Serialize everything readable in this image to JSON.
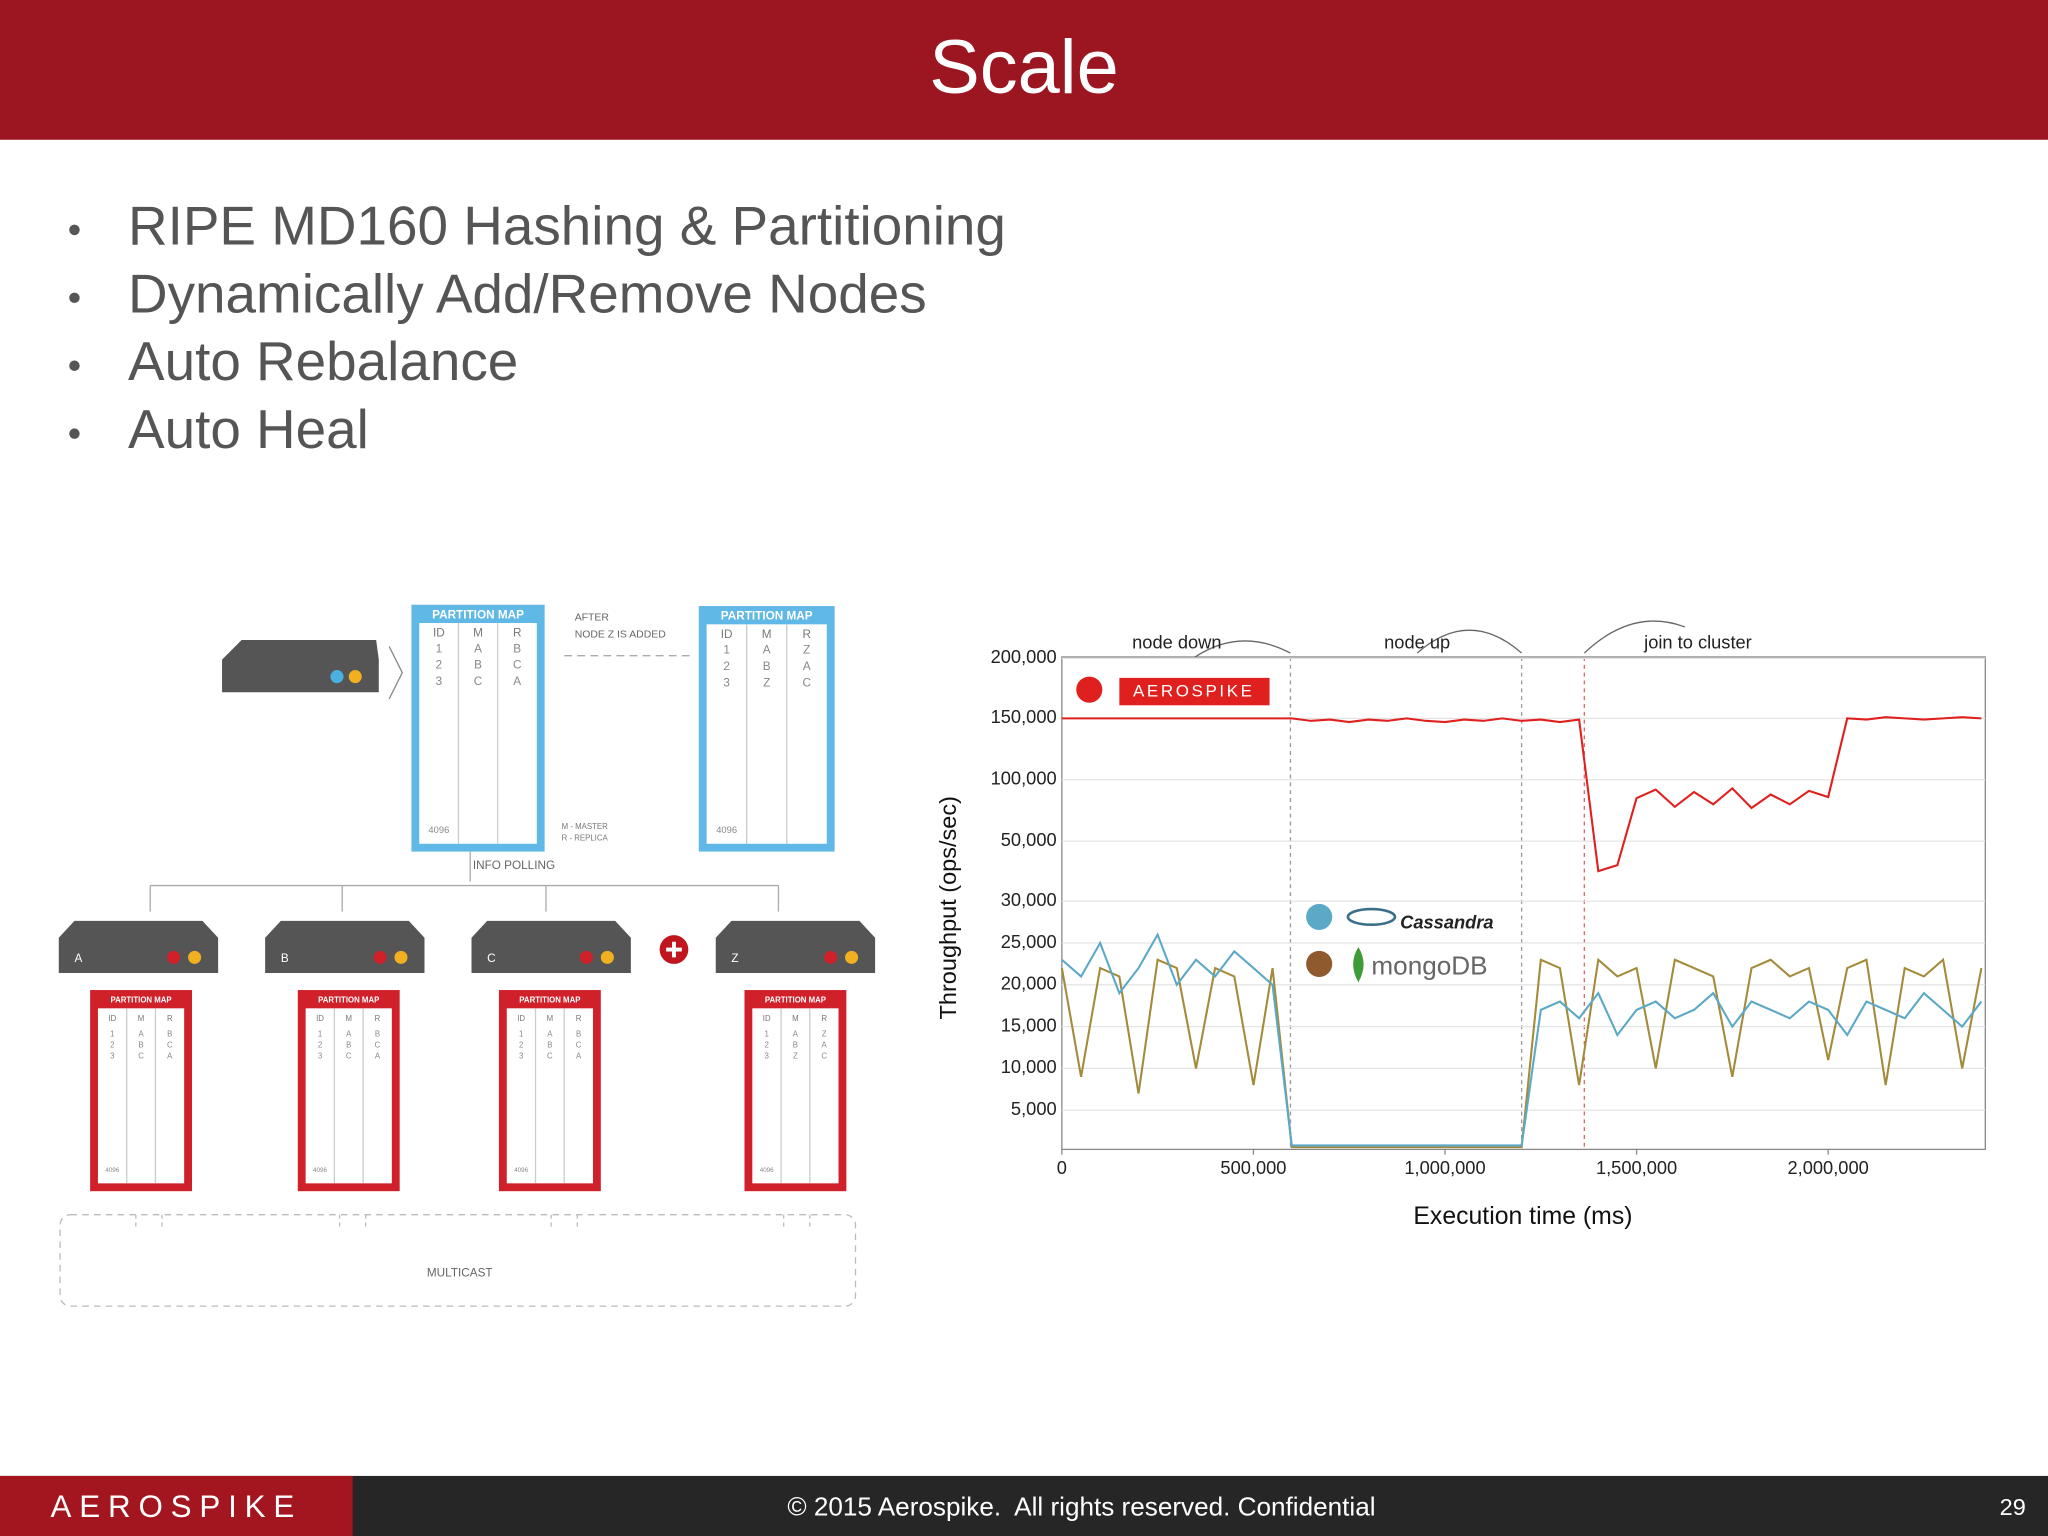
{
  "header": {
    "title": "Scale"
  },
  "bullets": [
    "RIPE MD160 Hashing & Partitioning",
    "Dynamically Add/Remove Nodes",
    "Auto Rebalance",
    "Auto Heal"
  ],
  "diagram": {
    "map_title": "PARTITION MAP",
    "headers": [
      "ID",
      "M",
      "R"
    ],
    "before_rows": [
      [
        "1",
        "A",
        "B"
      ],
      [
        "2",
        "B",
        "C"
      ],
      [
        "3",
        "C",
        "A"
      ]
    ],
    "after_rows": [
      [
        "1",
        "A",
        "Z"
      ],
      [
        "2",
        "B",
        "A"
      ],
      [
        "3",
        "Z",
        "C"
      ]
    ],
    "last_id": "4096",
    "after_note": [
      "AFTER",
      "NODE Z IS ADDED"
    ],
    "legend_notes": [
      "M - MASTER",
      "R - REPLICA"
    ],
    "info_polling": "INFO POLLING",
    "nodes": [
      "A",
      "B",
      "C",
      "Z"
    ],
    "multicast": "MULTICAST"
  },
  "chart_data": {
    "type": "line",
    "xlabel": "Execution time (ms)",
    "ylabel": "Throughput (ops/sec)",
    "annotations": [
      "node down",
      "node up",
      "join to cluster"
    ],
    "x": [
      0,
      50000,
      100000,
      150000,
      200000,
      250000,
      300000,
      350000,
      400000,
      450000,
      500000,
      550000,
      600000,
      650000,
      700000,
      750000,
      800000,
      850000,
      900000,
      950000,
      1000000,
      1050000,
      1100000,
      1150000,
      1200000,
      1250000,
      1300000,
      1350000,
      1400000,
      1450000,
      1500000,
      1550000,
      1600000,
      1650000,
      1700000,
      1750000,
      1800000,
      1850000,
      1900000,
      1950000,
      2000000,
      2050000,
      2100000,
      2150000,
      2200000,
      2250000,
      2300000,
      2350000,
      2400000
    ],
    "series": [
      {
        "name": "mongoDB",
        "color": "#a38b3b",
        "values": [
          22000,
          9000,
          22000,
          21000,
          7000,
          23000,
          22000,
          10000,
          22000,
          21000,
          8000,
          22000,
          300,
          300,
          300,
          300,
          300,
          300,
          300,
          300,
          300,
          300,
          300,
          300,
          300,
          23000,
          22000,
          8000,
          23000,
          21000,
          22000,
          10000,
          23000,
          22000,
          21000,
          9000,
          22000,
          23000,
          21000,
          22000,
          11000,
          22000,
          23000,
          8000,
          22000,
          21000,
          23000,
          10000,
          22000
        ]
      },
      {
        "name": "Cassandra",
        "color": "#5ba9c6",
        "values": [
          23000,
          21000,
          25000,
          19000,
          22000,
          26000,
          20000,
          23000,
          21000,
          24000,
          22000,
          20000,
          500,
          500,
          500,
          500,
          500,
          500,
          500,
          500,
          500,
          500,
          500,
          500,
          500,
          17000,
          18000,
          16000,
          19000,
          14000,
          17000,
          18000,
          16000,
          17000,
          19000,
          15000,
          18000,
          17000,
          16000,
          18000,
          17000,
          14000,
          18000,
          17000,
          16000,
          19000,
          17000,
          15000,
          18000
        ]
      },
      {
        "name": "AEROSPIKE",
        "color": "#e0201e",
        "values": [
          150000,
          150000,
          150000,
          150000,
          150000,
          150000,
          150000,
          150000,
          150000,
          150000,
          150000,
          150000,
          150000,
          148000,
          149000,
          147000,
          149000,
          148000,
          150000,
          148000,
          147000,
          149000,
          148000,
          150000,
          148000,
          149000,
          147000,
          149000,
          40000,
          42000,
          85000,
          92000,
          78000,
          90000,
          80000,
          93000,
          77000,
          88000,
          80000,
          91000,
          86000,
          150000,
          149000,
          151000,
          150000,
          149000,
          150000,
          151000,
          150000
        ]
      }
    ],
    "xlim": [
      0,
      2400000
    ],
    "ylim": [
      0,
      200000
    ],
    "xticks": [
      0,
      {
        "value": 500000,
        "label": "500,000"
      },
      {
        "value": 1000000,
        "label": "1,000,000"
      },
      {
        "value": 1500000,
        "label": "1,500,000"
      },
      {
        "value": 2000000,
        "label": "2,000,000"
      }
    ],
    "yticks": [
      {
        "value": 5000,
        "label": "5,000"
      },
      {
        "value": 10000,
        "label": "10,000"
      },
      {
        "value": 15000,
        "label": "15,000"
      },
      {
        "value": 20000,
        "label": "20,000"
      },
      {
        "value": 25000,
        "label": "25,000"
      },
      {
        "value": 30000,
        "label": "30,000"
      },
      {
        "value": 50000,
        "label": "50,000"
      },
      {
        "value": 100000,
        "label": "100,000"
      },
      {
        "value": 150000,
        "label": "150,000"
      },
      {
        "value": 200000,
        "label": "200,000"
      }
    ],
    "grid": true
  },
  "footer": {
    "logo": "AEROSPIKE",
    "text": "© 2015 Aerospike.  All rights reserved. Confidential",
    "page": "29"
  }
}
